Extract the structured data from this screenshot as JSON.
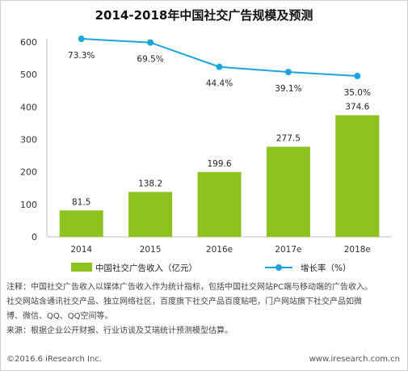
{
  "chart_data": {
    "type": "bar+line",
    "title": "2014-2018年中国社交广告规模及预测",
    "categories": [
      "2014",
      "2015",
      "2016e",
      "2017e",
      "2018e"
    ],
    "series": [
      {
        "name": "中国社交广告收入（亿元）",
        "type": "bar",
        "axis": "left",
        "values": [
          81.5,
          138.2,
          199.6,
          277.5,
          374.6
        ],
        "color": "#8dc21f"
      },
      {
        "name": "增长率（%）",
        "type": "line",
        "axis": "right-hidden",
        "values": [
          73.3,
          69.5,
          44.4,
          39.1,
          35.0
        ],
        "labels": [
          "73.3%",
          "69.5%",
          "44.4%",
          "39.1%",
          "35.0%"
        ],
        "color": "#1aa6dc"
      }
    ],
    "ylim": [
      0,
      600
    ],
    "yticks": [
      0,
      100,
      200,
      300,
      400,
      500,
      600
    ],
    "grid": false,
    "legend_position": "bottom"
  },
  "notes": [
    "注释：中国社交广告收入以媒体广告收入作为统计指标，包括中国社交网站PC端与移动端的广告收入。",
    "社交网站含通讯社交产品、独立网络社区，百度旗下社交产品百度贴吧，门户网站旗下社交产品如微",
    "博、微信、QQ、QQ空间等。",
    "来源：根据企业公开财报、行业访谈及艾瑞统计预测模型估算。"
  ],
  "footer": {
    "copyright": "©2016.6 iResearch Inc.",
    "website": "www.iresearch.com.cn"
  }
}
